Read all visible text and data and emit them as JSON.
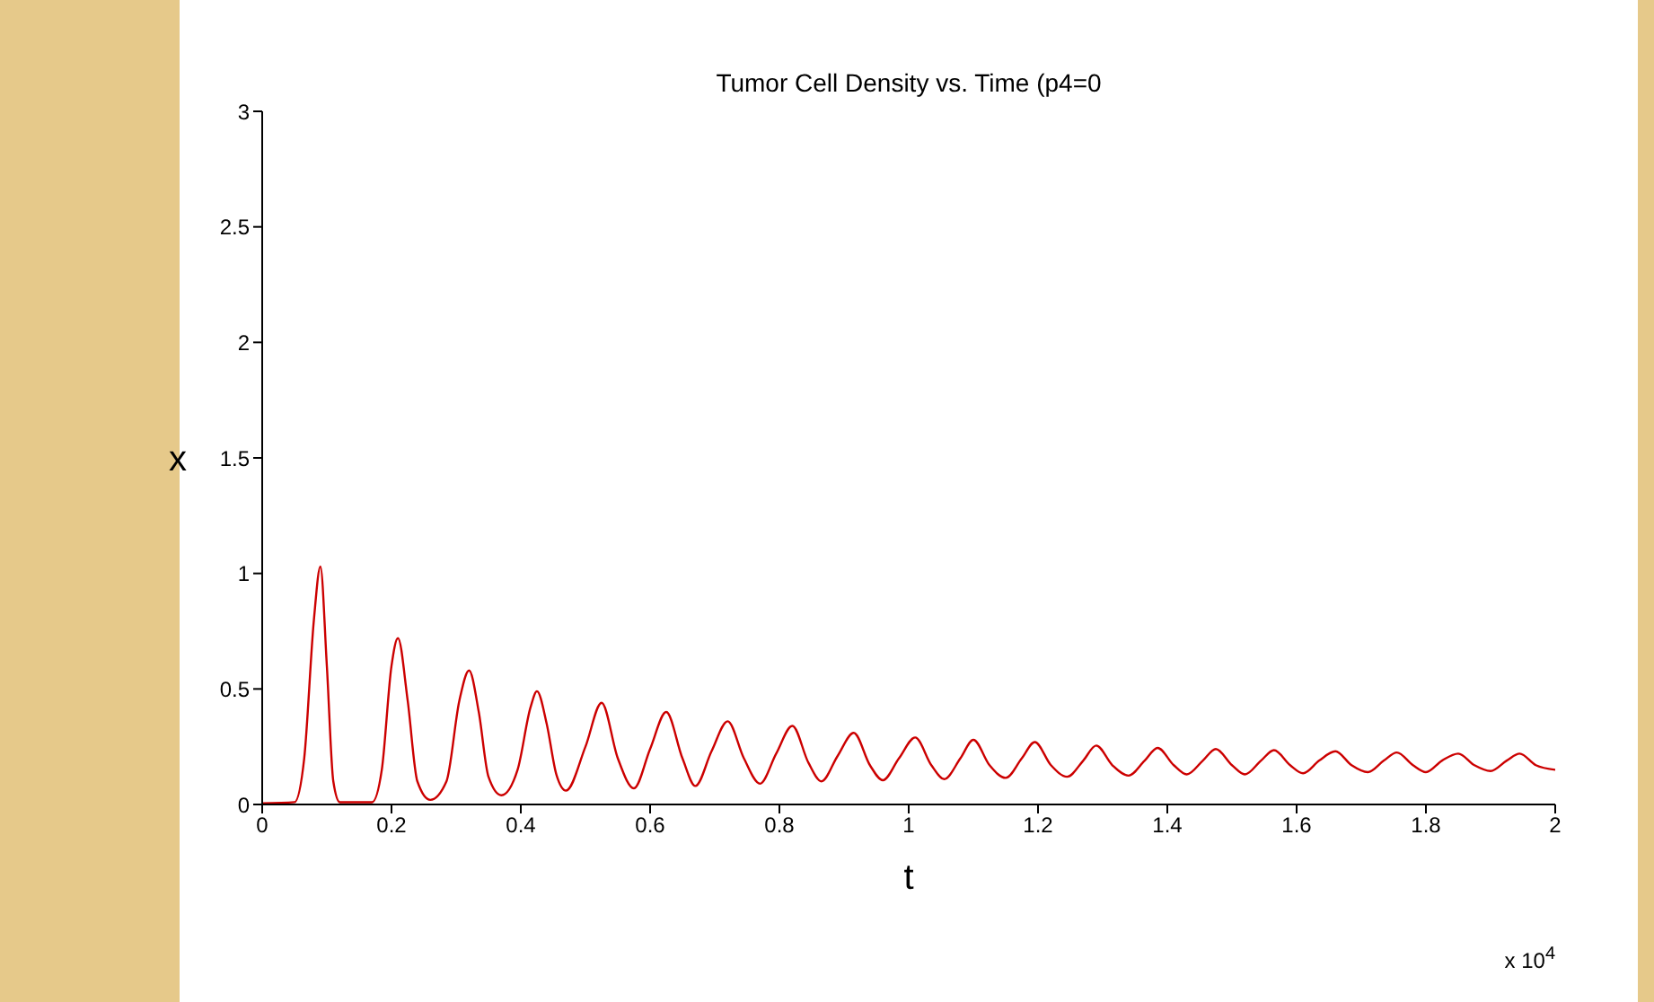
{
  "chart_data": {
    "type": "line",
    "title": "Tumor Cell Density vs. Time (p4=0",
    "xlabel": "t",
    "ylabel": "x",
    "annotations": [
      "x 10$^{4}$"
    ],
    "x": [
      0,
      0.05,
      0.065,
      0.08,
      0.09,
      0.1,
      0.11,
      0.12,
      0.17,
      0.185,
      0.2,
      0.21,
      0.225,
      0.24,
      0.26,
      0.285,
      0.305,
      0.32,
      0.335,
      0.35,
      0.37,
      0.395,
      0.415,
      0.425,
      0.44,
      0.455,
      0.47,
      0.5,
      0.525,
      0.55,
      0.575,
      0.6,
      0.625,
      0.65,
      0.67,
      0.695,
      0.72,
      0.745,
      0.77,
      0.795,
      0.82,
      0.845,
      0.865,
      0.89,
      0.915,
      0.94,
      0.96,
      0.985,
      1.01,
      1.035,
      1.055,
      1.08,
      1.1,
      1.125,
      1.15,
      1.175,
      1.195,
      1.22,
      1.245,
      1.27,
      1.29,
      1.315,
      1.34,
      1.365,
      1.385,
      1.41,
      1.43,
      1.455,
      1.475,
      1.5,
      1.52,
      1.545,
      1.565,
      1.59,
      1.61,
      1.635,
      1.66,
      1.685,
      1.71,
      1.735,
      1.755,
      1.78,
      1.8,
      1.825,
      1.85,
      1.875,
      1.9,
      1.925,
      1.945,
      1.97,
      2
    ],
    "series": [
      {
        "color": "#cc0000",
        "values": [
          0.005,
          0.01,
          0.2,
          0.8,
          1.03,
          0.6,
          0.1,
          0.01,
          0.01,
          0.15,
          0.6,
          0.72,
          0.45,
          0.1,
          0.02,
          0.1,
          0.45,
          0.58,
          0.4,
          0.12,
          0.04,
          0.15,
          0.42,
          0.49,
          0.35,
          0.13,
          0.06,
          0.25,
          0.44,
          0.2,
          0.07,
          0.24,
          0.4,
          0.2,
          0.08,
          0.23,
          0.36,
          0.2,
          0.09,
          0.22,
          0.34,
          0.18,
          0.1,
          0.21,
          0.31,
          0.17,
          0.105,
          0.2,
          0.29,
          0.17,
          0.11,
          0.2,
          0.28,
          0.17,
          0.115,
          0.2,
          0.27,
          0.17,
          0.12,
          0.19,
          0.255,
          0.17,
          0.125,
          0.19,
          0.245,
          0.17,
          0.13,
          0.19,
          0.24,
          0.17,
          0.13,
          0.19,
          0.235,
          0.17,
          0.135,
          0.19,
          0.23,
          0.17,
          0.14,
          0.19,
          0.225,
          0.17,
          0.14,
          0.19,
          0.22,
          0.17,
          0.145,
          0.19,
          0.22,
          0.17,
          0.15
        ]
      }
    ],
    "xlim": [
      0,
      2
    ],
    "xticks": [
      0,
      0.2,
      0.4,
      0.6,
      0.8,
      1,
      1.2,
      1.4,
      1.6,
      1.8,
      2
    ],
    "ylim": [
      0,
      3
    ],
    "yticks": [
      0,
      0.5,
      1,
      1.5,
      2,
      2.5,
      3
    ]
  }
}
